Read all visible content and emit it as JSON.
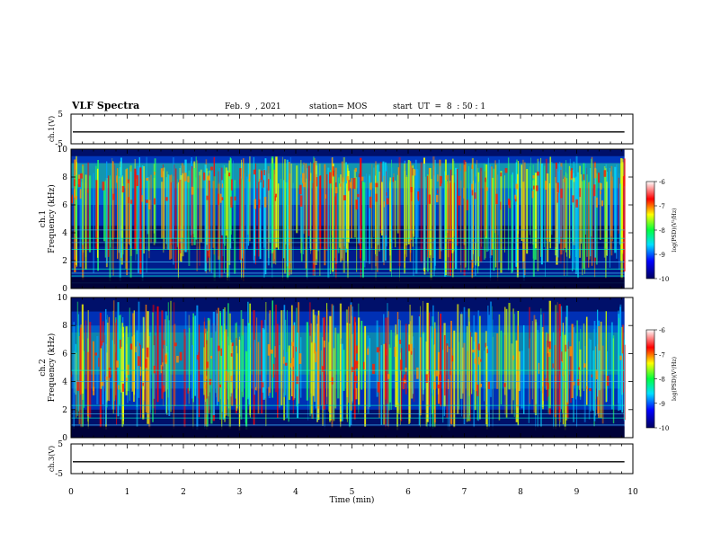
{
  "header": {
    "title": "VLF Spectra",
    "date": "Feb. 9  , 2021",
    "station": "station= MOS",
    "start": "start  UT  =  8  : 50 : 1"
  },
  "chart_data": {
    "type": "heatmap",
    "xlabel": "Time  (min)",
    "xlim": [
      0,
      10
    ],
    "xticks": [
      "0",
      "1",
      "2",
      "3",
      "4",
      "5",
      "6",
      "7",
      "8",
      "9",
      "10"
    ],
    "panels": [
      {
        "id": "ch1v",
        "kind": "waveform",
        "ylabel": "ch.1(V)",
        "yticks": [
          "5",
          "-5"
        ],
        "ylim": [
          -5,
          5
        ],
        "value": -1
      },
      {
        "id": "ch1",
        "kind": "spectrogram",
        "ylabel": "Frequency  (kHz)",
        "ylabel2": "ch.1",
        "ylim": [
          0,
          10
        ],
        "yticks": [
          "0",
          "2",
          "4",
          "6",
          "8",
          "10"
        ],
        "data_end_min": 9.85
      },
      {
        "id": "ch2",
        "kind": "spectrogram",
        "ylabel": "Frequency  (kHz)",
        "ylabel2": "ch.2",
        "ylim": [
          0,
          10
        ],
        "yticks": [
          "0",
          "2",
          "4",
          "6",
          "8",
          "10"
        ],
        "data_end_min": 9.85
      },
      {
        "id": "ch3v",
        "kind": "waveform",
        "ylabel": "ch.3(V)",
        "yticks": [
          "5",
          "-5"
        ],
        "ylim": [
          -5,
          5
        ],
        "value": -1
      }
    ],
    "colorbar": {
      "label": "log(PSD)(V²/Hz)",
      "range": [
        -10,
        -6
      ],
      "ticks": [
        "-6",
        "-7",
        "-8",
        "-9",
        "-10"
      ]
    }
  }
}
